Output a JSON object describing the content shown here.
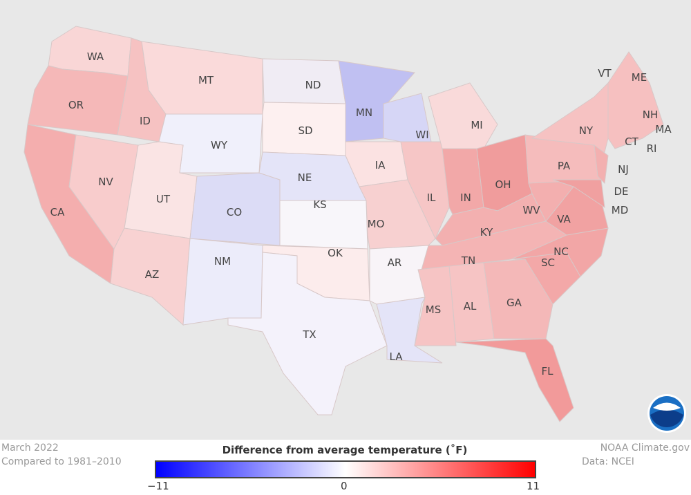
{
  "map": {
    "states": [
      {
        "id": "WA",
        "label": "WA",
        "color": "#f9d6d6"
      },
      {
        "id": "OR",
        "label": "OR",
        "color": "#f5b8b8"
      },
      {
        "id": "CA",
        "label": "CA",
        "color": "#f4aeae"
      },
      {
        "id": "NV",
        "label": "NV",
        "color": "#f8cccc"
      },
      {
        "id": "ID",
        "label": "ID",
        "color": "#f6c2c2"
      },
      {
        "id": "MT",
        "label": "MT",
        "color": "#fadada"
      },
      {
        "id": "WY",
        "label": "WY",
        "color": "#f0f0fb"
      },
      {
        "id": "UT",
        "label": "UT",
        "color": "#fae4e4"
      },
      {
        "id": "AZ",
        "label": "AZ",
        "color": "#f8d2d2"
      },
      {
        "id": "CO",
        "label": "CO",
        "color": "#dcdcf6"
      },
      {
        "id": "NM",
        "label": "NM",
        "color": "#ececfa"
      },
      {
        "id": "ND",
        "label": "ND",
        "color": "#f0ecf4"
      },
      {
        "id": "SD",
        "label": "SD",
        "color": "#fdf0f0"
      },
      {
        "id": "NE",
        "label": "NE",
        "color": "#e4e4f8"
      },
      {
        "id": "KS",
        "label": "KS",
        "color": "#f8f6fa"
      },
      {
        "id": "OK",
        "label": "OK",
        "color": "#fcecec"
      },
      {
        "id": "TX",
        "label": "TX",
        "color": "#f4f2fb"
      },
      {
        "id": "MN",
        "label": "MN",
        "color": "#c0c0f2"
      },
      {
        "id": "IA",
        "label": "IA",
        "color": "#fbe2e2"
      },
      {
        "id": "MO",
        "label": "MO",
        "color": "#f7d0d0"
      },
      {
        "id": "AR",
        "label": "AR",
        "color": "#f8f4f8"
      },
      {
        "id": "LA",
        "label": "LA",
        "color": "#e4e4f8"
      },
      {
        "id": "WI",
        "label": "WI",
        "color": "#d6d6f6"
      },
      {
        "id": "IL",
        "label": "IL",
        "color": "#f6c6c6"
      },
      {
        "id": "MI",
        "label": "MI",
        "color": "#f9dada"
      },
      {
        "id": "IN",
        "label": "IN",
        "color": "#f2a8a8"
      },
      {
        "id": "OH",
        "label": "OH",
        "color": "#f09c9c"
      },
      {
        "id": "KY",
        "label": "KY",
        "color": "#f3b0b0"
      },
      {
        "id": "TN",
        "label": "TN",
        "color": "#f4b4b4"
      },
      {
        "id": "MS",
        "label": "MS",
        "color": "#f6c4c4"
      },
      {
        "id": "AL",
        "label": "AL",
        "color": "#f6c4c4"
      },
      {
        "id": "GA",
        "label": "GA",
        "color": "#f4b8b8"
      },
      {
        "id": "FL",
        "label": "FL",
        "color": "#f29a9a"
      },
      {
        "id": "SC",
        "label": "SC",
        "color": "#f3a8a8"
      },
      {
        "id": "NC",
        "label": "NC",
        "color": "#f2a6a6"
      },
      {
        "id": "VA",
        "label": "VA",
        "color": "#f1a2a2"
      },
      {
        "id": "WV",
        "label": "WV",
        "color": "#f3afaf"
      },
      {
        "id": "PA",
        "label": "PA",
        "color": "#f5bcbc"
      },
      {
        "id": "NY",
        "label": "NY",
        "color": "#f6c2c2"
      },
      {
        "id": "NJ",
        "label": "NJ",
        "color": "#f3b0b0"
      },
      {
        "id": "MD",
        "label": "MD",
        "color": "#f0a0a0"
      },
      {
        "id": "NE_REG",
        "label": "",
        "color": "#f6c0c0"
      }
    ],
    "callouts": [
      "VT",
      "ME",
      "NH",
      "MA",
      "RI",
      "CT",
      "NJ",
      "DE",
      "MD"
    ]
  },
  "footer": {
    "date": "March 2022",
    "baseline": "Compared to 1981–2010",
    "legend_title": "Difference from average temperature (˚F)",
    "scale_min": "−11",
    "scale_mid": "0",
    "scale_max": "11",
    "scale_colors": {
      "min": "#0000ff",
      "mid": "#ffffff",
      "max": "#ff0000"
    },
    "credit": "NOAA Climate.gov",
    "source": "Data: NCEI"
  },
  "logo": {
    "text": "NOAA"
  }
}
